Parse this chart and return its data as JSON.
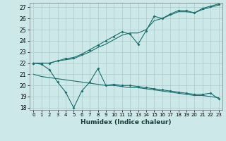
{
  "xlabel": "Humidex (Indice chaleur)",
  "bg_color": "#cce8e8",
  "grid_color": "#aacccc",
  "line_color": "#1a6e6e",
  "xlim": [
    -0.5,
    23.5
  ],
  "ylim": [
    17.8,
    27.4
  ],
  "yticks": [
    18,
    19,
    20,
    21,
    22,
    23,
    24,
    25,
    26,
    27
  ],
  "xticks": [
    0,
    1,
    2,
    3,
    4,
    5,
    6,
    7,
    8,
    9,
    10,
    11,
    12,
    13,
    14,
    15,
    16,
    17,
    18,
    19,
    20,
    21,
    22,
    23
  ],
  "line1_x": [
    0,
    1,
    2,
    3,
    4,
    5,
    6,
    7,
    8,
    9,
    10,
    11,
    12,
    13,
    14,
    15,
    16,
    17,
    18,
    19,
    20,
    21,
    22,
    23
  ],
  "line1_y": [
    22.0,
    22.0,
    22.0,
    22.2,
    22.3,
    22.4,
    22.7,
    23.0,
    23.4,
    23.7,
    24.1,
    24.5,
    24.7,
    24.7,
    25.0,
    25.8,
    26.0,
    26.3,
    26.6,
    26.6,
    26.5,
    26.8,
    27.0,
    27.2
  ],
  "line2_x": [
    0,
    1,
    2,
    3,
    4,
    5,
    6,
    7,
    8,
    9,
    10,
    11,
    12,
    13,
    14,
    15,
    16,
    17,
    18,
    19,
    20,
    21,
    22,
    23
  ],
  "line2_y": [
    22.0,
    22.0,
    22.0,
    22.2,
    22.4,
    22.5,
    22.8,
    23.2,
    23.6,
    24.0,
    24.4,
    24.8,
    24.6,
    23.7,
    24.9,
    26.2,
    26.0,
    26.4,
    26.7,
    26.7,
    26.5,
    26.9,
    27.1,
    27.3
  ],
  "line3_x": [
    0,
    1,
    2,
    3,
    4,
    5,
    6,
    7,
    8,
    9,
    10,
    11,
    12,
    13,
    14,
    15,
    16,
    17,
    18,
    19,
    20,
    21,
    22,
    23
  ],
  "line3_y": [
    22.0,
    21.9,
    21.4,
    20.3,
    19.4,
    18.0,
    19.5,
    20.3,
    21.5,
    20.0,
    20.1,
    20.0,
    20.0,
    19.9,
    19.8,
    19.7,
    19.6,
    19.5,
    19.4,
    19.3,
    19.2,
    19.2,
    19.3,
    18.8
  ],
  "line4_x": [
    0,
    1,
    2,
    3,
    4,
    5,
    6,
    7,
    8,
    9,
    10,
    11,
    12,
    13,
    14,
    15,
    16,
    17,
    18,
    19,
    20,
    21,
    22,
    23
  ],
  "line4_y": [
    21.0,
    20.8,
    20.7,
    20.6,
    20.5,
    20.4,
    20.3,
    20.2,
    20.1,
    20.0,
    20.0,
    19.9,
    19.8,
    19.8,
    19.7,
    19.6,
    19.5,
    19.4,
    19.3,
    19.2,
    19.1,
    19.1,
    19.0,
    18.9
  ]
}
